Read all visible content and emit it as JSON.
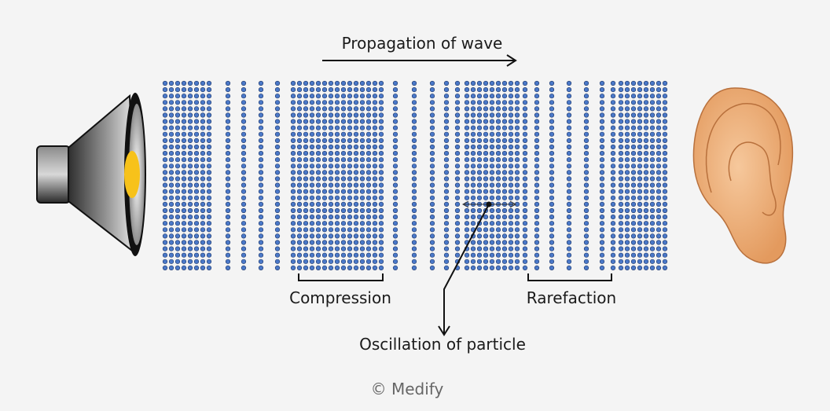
{
  "header": {
    "title": "Propagation of wave"
  },
  "labels": {
    "compression": "Compression",
    "rarefaction": "Rarefaction",
    "oscillation": "Oscillation of particle"
  },
  "footer": {
    "credit": "© Medify"
  }
}
